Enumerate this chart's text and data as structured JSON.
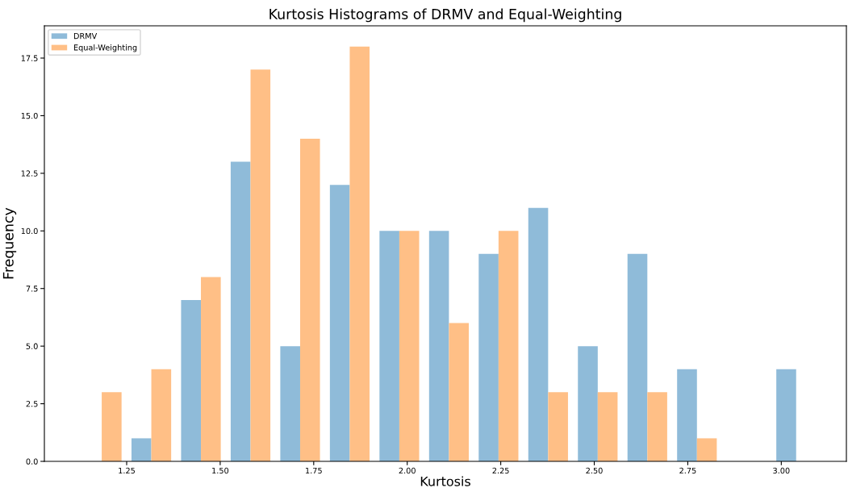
{
  "chart_data": {
    "type": "histogram",
    "title": "Kurtosis Histograms of DRMV and Equal-Weighting",
    "xlabel": "Kurtosis",
    "ylabel": "Frequency",
    "bins": [
      1.117,
      1.2496,
      1.3822,
      1.5148,
      1.6474,
      1.78,
      1.9126,
      2.0452,
      2.1778,
      2.3104,
      2.443,
      2.5756,
      2.7082,
      2.8408,
      2.9734,
      3.106
    ],
    "series": [
      {
        "name": "DRMV",
        "color": "#8fbbd9",
        "values": [
          0,
          1,
          7,
          13,
          5,
          12,
          10,
          10,
          9,
          11,
          5,
          9,
          4,
          0,
          4
        ]
      },
      {
        "name": "Equal-Weighting",
        "color": "#ffbf86",
        "values": [
          3,
          4,
          8,
          17,
          14,
          18,
          10,
          6,
          10,
          3,
          3,
          3,
          1,
          0,
          0
        ]
      }
    ],
    "xlim": [
      1.03,
      3.174
    ],
    "ylim": [
      0,
      18.9
    ],
    "xticks": [
      {
        "value": 1.25,
        "label": "1.25"
      },
      {
        "value": 1.5,
        "label": "1.50"
      },
      {
        "value": 1.75,
        "label": "1.75"
      },
      {
        "value": 2.0,
        "label": "2.00"
      },
      {
        "value": 2.25,
        "label": "2.25"
      },
      {
        "value": 2.5,
        "label": "2.50"
      },
      {
        "value": 2.75,
        "label": "2.75"
      },
      {
        "value": 3.0,
        "label": "3.00"
      }
    ],
    "yticks": [
      {
        "value": 0,
        "label": "0.0"
      },
      {
        "value": 2.5,
        "label": "2.5"
      },
      {
        "value": 5,
        "label": "5.0"
      },
      {
        "value": 7.5,
        "label": "7.5"
      },
      {
        "value": 10,
        "label": "10.0"
      },
      {
        "value": 12.5,
        "label": "12.5"
      },
      {
        "value": 15,
        "label": "15.0"
      },
      {
        "value": 17.5,
        "label": "17.5"
      }
    ],
    "legend": "top left"
  }
}
